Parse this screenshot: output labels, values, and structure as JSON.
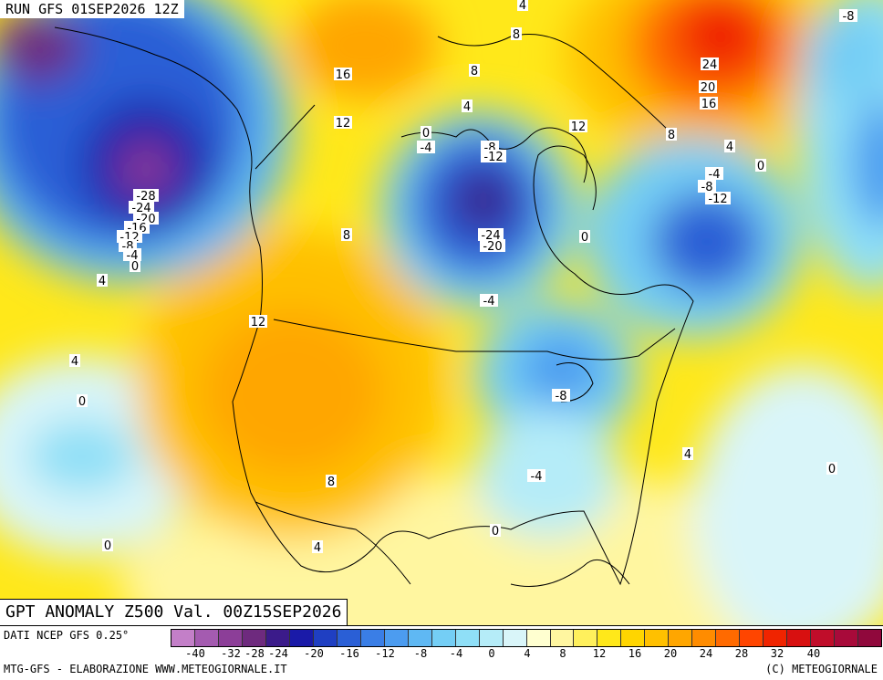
{
  "titles": {
    "run": "RUN GFS 01SEP2026 12Z",
    "anomaly": "GPT ANOMALY Z500 Val. 00Z15SEP2026",
    "source": "DATI NCEP GFS 0.25°",
    "credit": "MTG-GFS - ELABORAZIONE WWW.METEOGIORNALE.IT",
    "copyright": "(C) METEOGIORNALE"
  },
  "legend": {
    "colors": [
      "#c37fc8",
      "#a45bb0",
      "#8c3e98",
      "#6e2a7e",
      "#3b1b8a",
      "#1a1aa8",
      "#1f3fc2",
      "#2a5fd6",
      "#3a7ee6",
      "#4c9cf0",
      "#5fb8f3",
      "#74cef5",
      "#8fdff7",
      "#b5ecf8",
      "#d9f5f9",
      "#ffffd0",
      "#fff6a0",
      "#fff05c",
      "#ffe81a",
      "#ffd500",
      "#ffc000",
      "#ffa600",
      "#ff8c00",
      "#ff6a00",
      "#ff4500",
      "#f02400",
      "#d81010",
      "#c00d2a",
      "#a80a3a",
      "#90083c"
    ],
    "labels": [
      "-40",
      "-32",
      "-28",
      "-24",
      "-20",
      "-16",
      "-12",
      "-8",
      "-4",
      "0",
      "4",
      "8",
      "12",
      "16",
      "20",
      "24",
      "28",
      "32",
      "40"
    ]
  },
  "contour_labels": [
    "4",
    "-8",
    "8",
    "16",
    "8",
    "24",
    "20",
    "16",
    "12",
    "12",
    "4",
    "-4",
    "0",
    "-8",
    "-12",
    "8",
    "4",
    "0",
    "-4",
    "-8",
    "-12",
    "-28",
    "-24",
    "-20",
    "-16",
    "-12",
    "-8",
    "-4",
    "0",
    "4",
    "8",
    "-24",
    "-20",
    "0",
    "12",
    "-4",
    "4",
    "0",
    "-8",
    "-4",
    "0",
    "4",
    "8",
    "0",
    "4",
    "0"
  ]
}
